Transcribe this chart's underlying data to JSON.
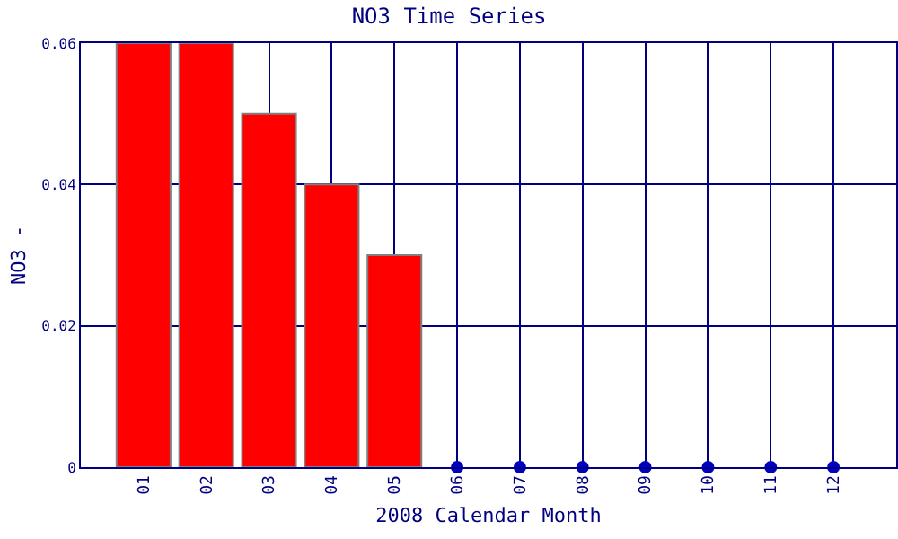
{
  "chart_data": {
    "type": "bar",
    "title": "NO3 Time Series",
    "xlabel": "2008 Calendar Month",
    "ylabel": "NO3 -",
    "categories": [
      "01",
      "02",
      "03",
      "04",
      "05",
      "06",
      "07",
      "08",
      "09",
      "10",
      "11",
      "12"
    ],
    "series": [
      {
        "color": "#ff0000",
        "values": [
          0.06,
          0.06,
          0.05,
          0.04,
          0.03,
          null,
          null,
          null,
          null,
          null,
          null,
          null
        ]
      },
      {
        "type": "scatter",
        "color": "#0000c0",
        "values": [
          null,
          null,
          null,
          null,
          null,
          0,
          0,
          0,
          0,
          0,
          0,
          0
        ]
      }
    ],
    "ylim": [
      0,
      0.06
    ],
    "yticks": [
      0,
      0.02,
      0.04,
      0.06
    ],
    "grid": true,
    "marker": "circle"
  }
}
